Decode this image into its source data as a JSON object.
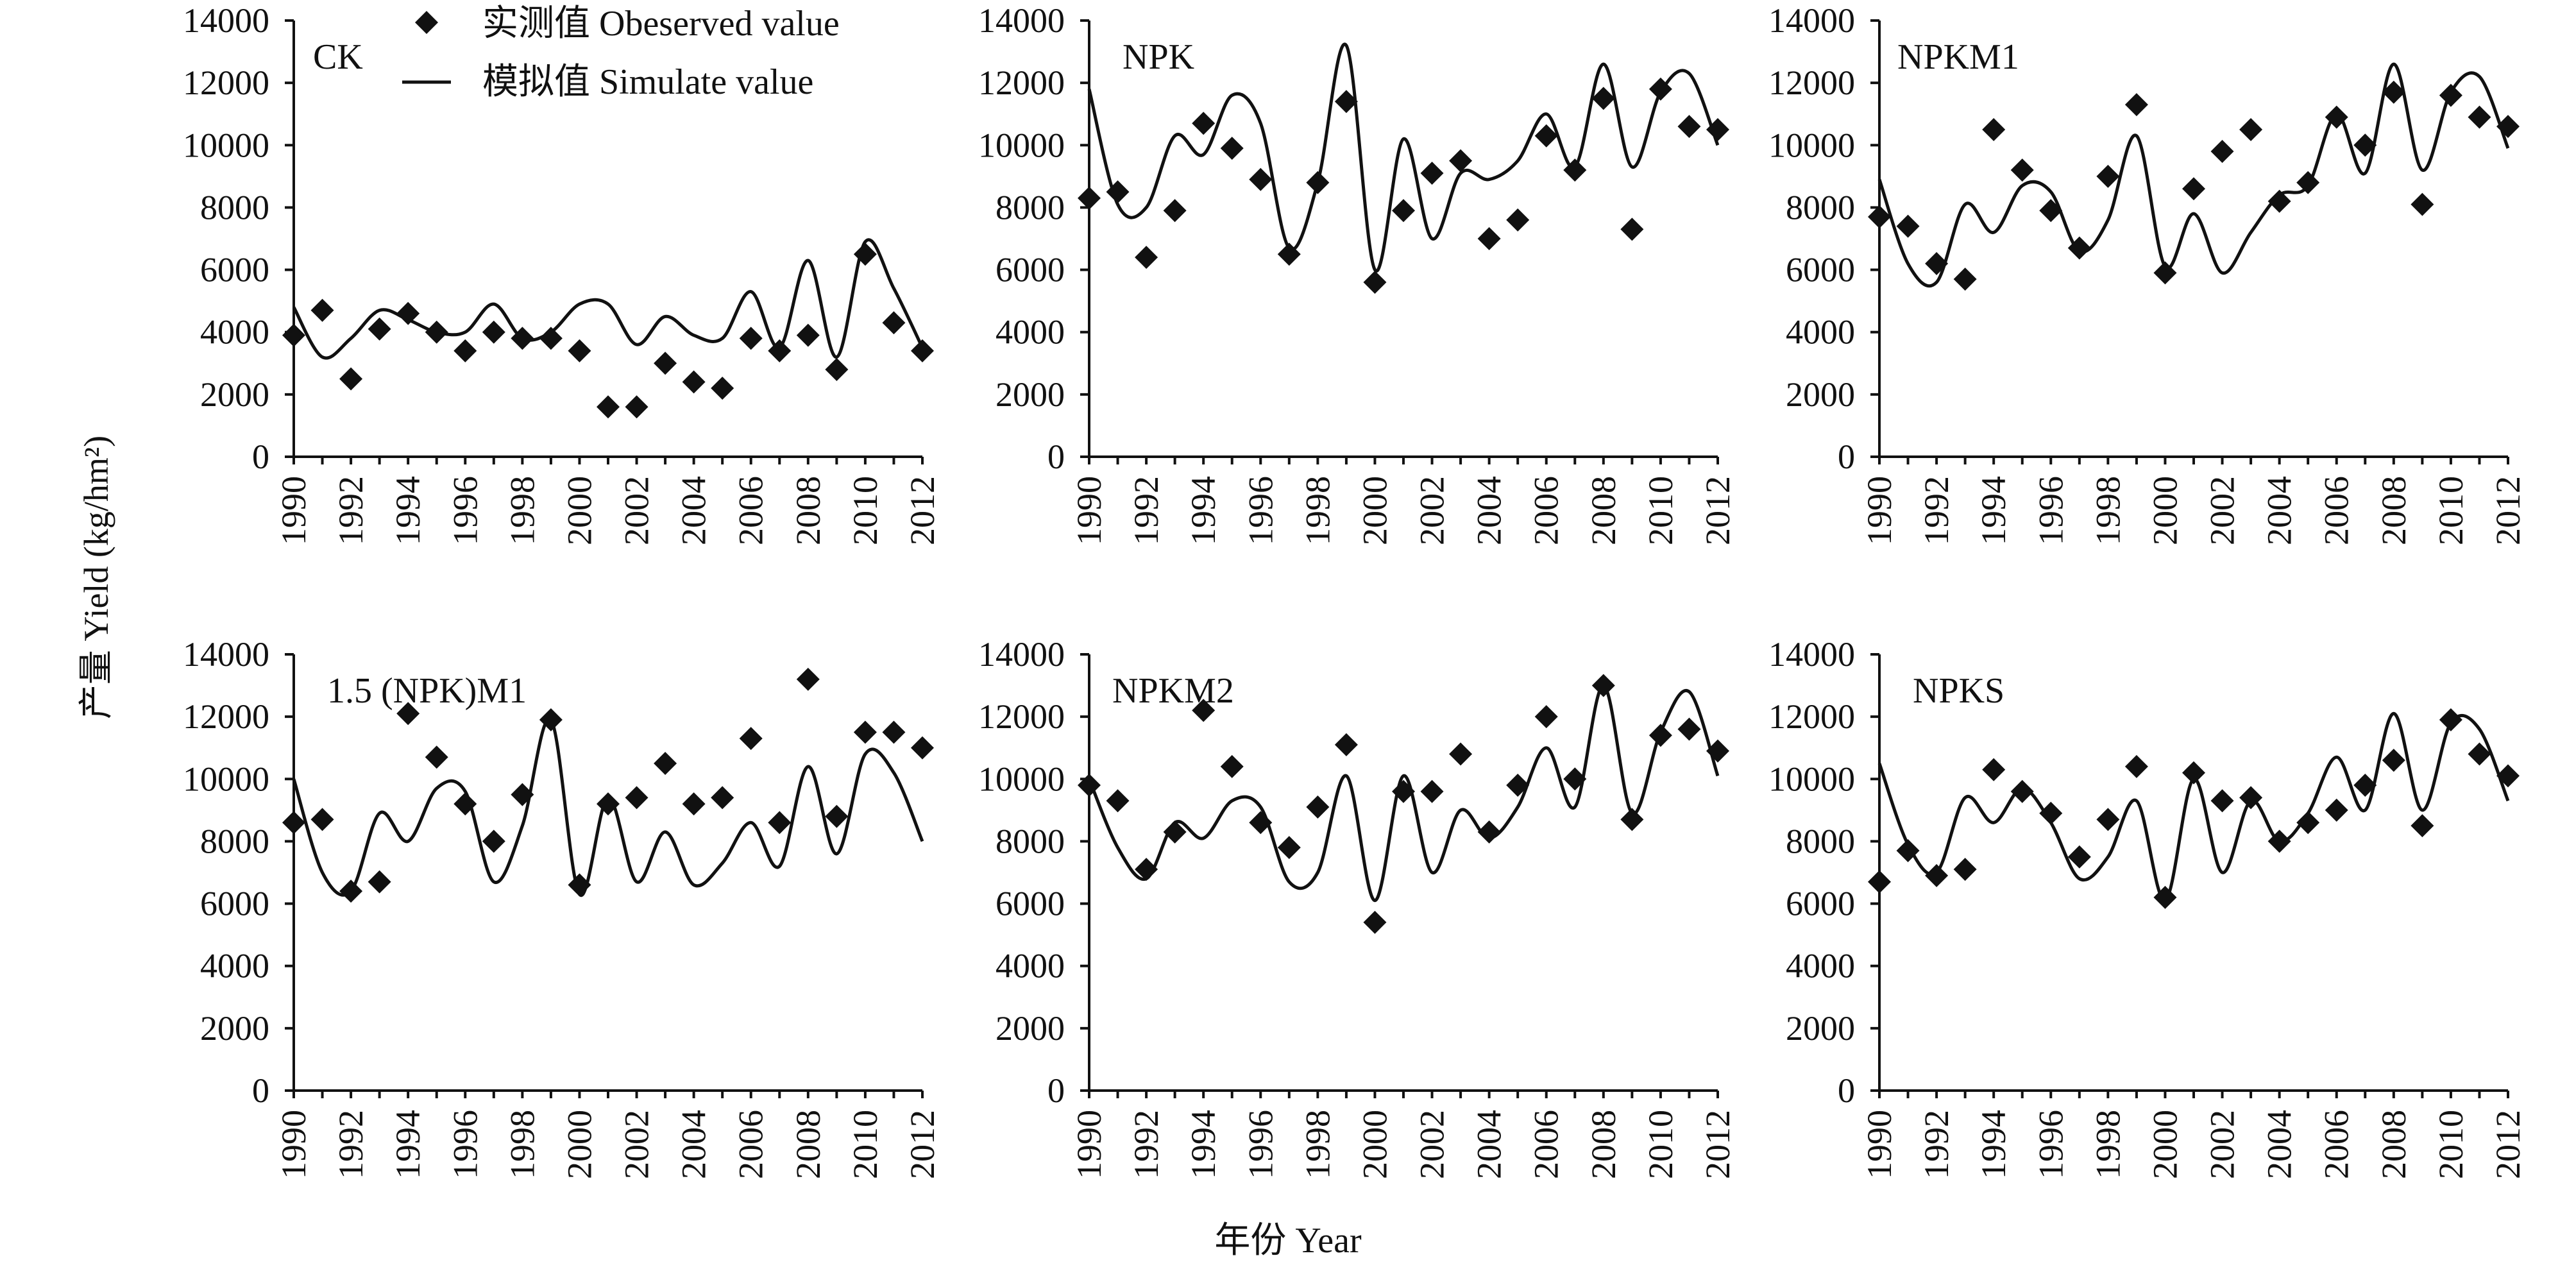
{
  "figure": {
    "y_axis_title": "产量 Yield (kg/hm²)",
    "x_axis_title": "年份 Year",
    "legend": {
      "observed_label": "实测值 Obeserved value",
      "simulated_label": "模拟值 Simulate value"
    },
    "colors": {
      "ink": "#111111",
      "background": "#ffffff"
    }
  },
  "chart_data": [
    {
      "type": "scatter+line",
      "panel_label": "CK",
      "x": [
        1990,
        1991,
        1992,
        1993,
        1994,
        1995,
        1996,
        1997,
        1998,
        1999,
        2000,
        2001,
        2002,
        2003,
        2004,
        2005,
        2006,
        2007,
        2008,
        2009,
        2010,
        2011,
        2012
      ],
      "observed": [
        3900,
        4700,
        2500,
        4100,
        4600,
        4000,
        3400,
        4000,
        3800,
        3800,
        3400,
        1600,
        1600,
        3000,
        2400,
        2200,
        3800,
        3400,
        3900,
        2800,
        6500,
        4300,
        3400
      ],
      "simulated": [
        4800,
        3200,
        3800,
        4700,
        4400,
        4000,
        4000,
        4900,
        3800,
        4000,
        4900,
        4900,
        3600,
        4500,
        3900,
        3800,
        5300,
        3500,
        6300,
        3200,
        6900,
        5400,
        3500
      ],
      "xlim": [
        1990,
        2012
      ],
      "ylim": [
        0,
        14000
      ],
      "yticks": [
        0,
        2000,
        4000,
        6000,
        8000,
        10000,
        12000,
        14000
      ],
      "xticks": [
        1990,
        1992,
        1994,
        1996,
        1998,
        2000,
        2002,
        2004,
        2006,
        2008,
        2010,
        2012
      ],
      "legend_position": "top"
    },
    {
      "type": "scatter+line",
      "panel_label": "NPK",
      "x": [
        1990,
        1991,
        1992,
        1993,
        1994,
        1995,
        1996,
        1997,
        1998,
        1999,
        2000,
        2001,
        2002,
        2003,
        2004,
        2005,
        2006,
        2007,
        2008,
        2009,
        2010,
        2011,
        2012
      ],
      "observed": [
        8300,
        8500,
        6400,
        7900,
        10700,
        9900,
        8900,
        6500,
        8800,
        11400,
        5600,
        7900,
        9100,
        9500,
        7000,
        7600,
        10300,
        9200,
        11500,
        7300,
        11800,
        10600,
        10500
      ],
      "simulated": [
        11800,
        8100,
        8000,
        10300,
        9700,
        11600,
        10700,
        6700,
        8800,
        13200,
        6000,
        10200,
        7000,
        9100,
        8900,
        9500,
        11000,
        9300,
        12600,
        9300,
        11700,
        12300,
        10000
      ],
      "xlim": [
        1990,
        2012
      ],
      "ylim": [
        0,
        14000
      ],
      "yticks": [
        0,
        2000,
        4000,
        6000,
        8000,
        10000,
        12000,
        14000
      ],
      "xticks": [
        1990,
        1992,
        1994,
        1996,
        1998,
        2000,
        2002,
        2004,
        2006,
        2008,
        2010,
        2012
      ]
    },
    {
      "type": "scatter+line",
      "panel_label": "NPKM1",
      "x": [
        1990,
        1991,
        1992,
        1993,
        1994,
        1995,
        1996,
        1997,
        1998,
        1999,
        2000,
        2001,
        2002,
        2003,
        2004,
        2005,
        2006,
        2007,
        2008,
        2009,
        2010,
        2011,
        2012
      ],
      "observed": [
        7700,
        7400,
        6200,
        5700,
        10500,
        9200,
        7900,
        6700,
        9000,
        11300,
        5900,
        8600,
        9800,
        10500,
        8200,
        8800,
        10900,
        10000,
        11700,
        8100,
        11600,
        10900,
        10600
      ],
      "simulated": [
        8900,
        6200,
        5600,
        8100,
        7200,
        8700,
        8500,
        6600,
        7600,
        10300,
        6100,
        7800,
        5900,
        7200,
        8400,
        8700,
        11000,
        9100,
        12600,
        9200,
        11700,
        12200,
        9900
      ],
      "xlim": [
        1990,
        2012
      ],
      "ylim": [
        0,
        14000
      ],
      "yticks": [
        0,
        2000,
        4000,
        6000,
        8000,
        10000,
        12000,
        14000
      ],
      "xticks": [
        1990,
        1992,
        1994,
        1996,
        1998,
        2000,
        2002,
        2004,
        2006,
        2008,
        2010,
        2012
      ]
    },
    {
      "type": "scatter+line",
      "panel_label": "1.5 (NPK)M1",
      "x": [
        1990,
        1991,
        1992,
        1993,
        1994,
        1995,
        1996,
        1997,
        1998,
        1999,
        2000,
        2001,
        2002,
        2003,
        2004,
        2005,
        2006,
        2007,
        2008,
        2009,
        2010,
        2011,
        2012
      ],
      "observed": [
        8600,
        8700,
        6400,
        6700,
        12100,
        10700,
        9200,
        8000,
        9500,
        11900,
        6600,
        9200,
        9400,
        10500,
        9200,
        9400,
        11300,
        8600,
        13200,
        8800,
        11500,
        11500,
        11000
      ],
      "simulated": [
        10000,
        7000,
        6400,
        8900,
        8000,
        9700,
        9600,
        6700,
        8500,
        11900,
        6300,
        9400,
        6700,
        8300,
        6600,
        7300,
        8600,
        7200,
        10400,
        7600,
        10800,
        10200,
        8000
      ],
      "xlim": [
        1990,
        2012
      ],
      "ylim": [
        0,
        14000
      ],
      "yticks": [
        0,
        2000,
        4000,
        6000,
        8000,
        10000,
        12000,
        14000
      ],
      "xticks": [
        1990,
        1992,
        1994,
        1996,
        1998,
        2000,
        2002,
        2004,
        2006,
        2008,
        2010,
        2012
      ]
    },
    {
      "type": "scatter+line",
      "panel_label": "NPKM2",
      "x": [
        1990,
        1991,
        1992,
        1993,
        1994,
        1995,
        1996,
        1997,
        1998,
        1999,
        2000,
        2001,
        2002,
        2003,
        2004,
        2005,
        2006,
        2007,
        2008,
        2009,
        2010,
        2011,
        2012
      ],
      "observed": [
        9800,
        9300,
        7100,
        8300,
        12200,
        10400,
        8600,
        7800,
        9100,
        11100,
        5400,
        9600,
        9600,
        10800,
        8300,
        9800,
        12000,
        10000,
        13000,
        8700,
        11400,
        11600,
        10900
      ],
      "simulated": [
        10000,
        7800,
        6800,
        8600,
        8100,
        9300,
        9100,
        6700,
        7000,
        10100,
        6100,
        10100,
        7000,
        9000,
        8100,
        9100,
        11000,
        9100,
        13000,
        8900,
        11500,
        12800,
        10100
      ],
      "xlim": [
        1990,
        2012
      ],
      "ylim": [
        0,
        14000
      ],
      "yticks": [
        0,
        2000,
        4000,
        6000,
        8000,
        10000,
        12000,
        14000
      ],
      "xticks": [
        1990,
        1992,
        1994,
        1996,
        1998,
        2000,
        2002,
        2004,
        2006,
        2008,
        2010,
        2012
      ]
    },
    {
      "type": "scatter+line",
      "panel_label": "NPKS",
      "x": [
        1990,
        1991,
        1992,
        1993,
        1994,
        1995,
        1996,
        1997,
        1998,
        1999,
        2000,
        2001,
        2002,
        2003,
        2004,
        2005,
        2006,
        2007,
        2008,
        2009,
        2010,
        2011,
        2012
      ],
      "observed": [
        6700,
        7700,
        6900,
        7100,
        10300,
        9600,
        8900,
        7500,
        8700,
        10400,
        6200,
        10200,
        9300,
        9400,
        8000,
        8600,
        9000,
        9800,
        10600,
        8500,
        11900,
        10800,
        10100
      ],
      "simulated": [
        10500,
        7900,
        7000,
        9400,
        8600,
        9700,
        8600,
        6800,
        7500,
        9300,
        6100,
        10000,
        7000,
        9300,
        8000,
        8900,
        10700,
        9000,
        12100,
        9000,
        11800,
        11600,
        9300
      ],
      "xlim": [
        1990,
        2012
      ],
      "ylim": [
        0,
        14000
      ],
      "yticks": [
        0,
        2000,
        4000,
        6000,
        8000,
        10000,
        12000,
        14000
      ],
      "xticks": [
        1990,
        1992,
        1994,
        1996,
        1998,
        2000,
        2002,
        2004,
        2006,
        2008,
        2010,
        2012
      ]
    }
  ]
}
